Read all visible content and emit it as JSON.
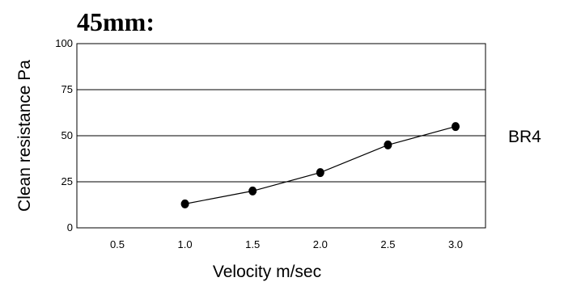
{
  "chart_data": {
    "type": "line",
    "title": "45mm:",
    "xlabel": "Velocity m/sec",
    "ylabel": "Clean resistance Pa",
    "categories": [
      "0.5",
      "1.0",
      "1.5",
      "2.0",
      "2.5",
      "3.0"
    ],
    "y_ticks": [
      "0",
      "25",
      "50",
      "75",
      "100"
    ],
    "ylim": [
      0,
      100
    ],
    "grid": "horizontal",
    "legend_position": "right",
    "series": [
      {
        "name": "BR4",
        "x": [
          1.0,
          1.5,
          2.0,
          2.5,
          3.0
        ],
        "values": [
          13,
          20,
          30,
          45,
          55
        ]
      }
    ],
    "colors": {
      "line": "#000000",
      "marker": "#000000",
      "grid": "#000000"
    }
  }
}
